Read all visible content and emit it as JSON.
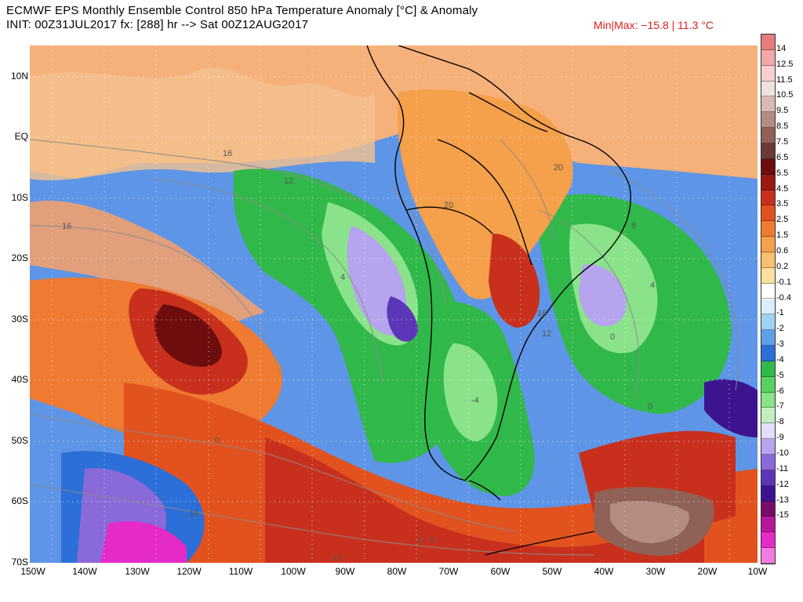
{
  "header": {
    "title": "ECMWF EPS Monthly Ensemble Control 850 hPa Temperature Anomaly [°C] & Anomaly",
    "init": "INIT: 00Z31JUL2017 fx: [288] hr --> Sat 00Z12AUG2017",
    "minmax": "Min|Max: −15.8 | 11.3 °C"
  },
  "map": {
    "lat_labels": [
      "10N",
      "EQ",
      "10S",
      "20S",
      "30S",
      "40S",
      "50S",
      "60S",
      "70S"
    ],
    "lon_labels": [
      "150W",
      "140W",
      "130W",
      "120W",
      "110W",
      "100W",
      "90W",
      "80W",
      "70W",
      "60W",
      "50W",
      "40W",
      "30W",
      "20W",
      "10W"
    ],
    "contour_labels": [
      "16",
      "16",
      "12",
      "20",
      "20",
      "8",
      "4",
      "4",
      "0",
      "0",
      "16",
      "12",
      "0",
      "-4",
      "8",
      "-16",
      "12",
      "8"
    ]
  },
  "colorbar": {
    "ticks": [
      "14",
      "12.5",
      "11.5",
      "10.5",
      "9.5",
      "8.5",
      "7.5",
      "6.5",
      "5.5",
      "4.5",
      "3.5",
      "2.5",
      "1.5",
      "0.6",
      "0.2",
      "-0.1",
      "-0.4",
      "-1",
      "-2",
      "-3",
      "-4",
      "-5",
      "-6",
      "-7",
      "-8",
      "-9",
      "-10",
      "-11",
      "-12",
      "-13",
      "-15"
    ],
    "colors": [
      "#e87b7b",
      "#f2a8a8",
      "#f8d0d0",
      "#efe2de",
      "#d9b9b1",
      "#b58c82",
      "#8f6157",
      "#6a3a34",
      "#6d0d0d",
      "#9a1a10",
      "#c8301d",
      "#e2521f",
      "#ef7a31",
      "#f5a04a",
      "#f8c070",
      "#fbe09e",
      "#ffffff",
      "#d9eefa",
      "#9fd2f2",
      "#5ea0e8",
      "#2c6fd8",
      "#30b84a",
      "#58d262",
      "#8ae38a",
      "#c2efc0",
      "#e3defa",
      "#b7a4ee",
      "#8a6ad8",
      "#5c36b8",
      "#3c1490",
      "#7a0d6a",
      "#b8179a",
      "#e52bc7",
      "#f47be0"
    ]
  }
}
